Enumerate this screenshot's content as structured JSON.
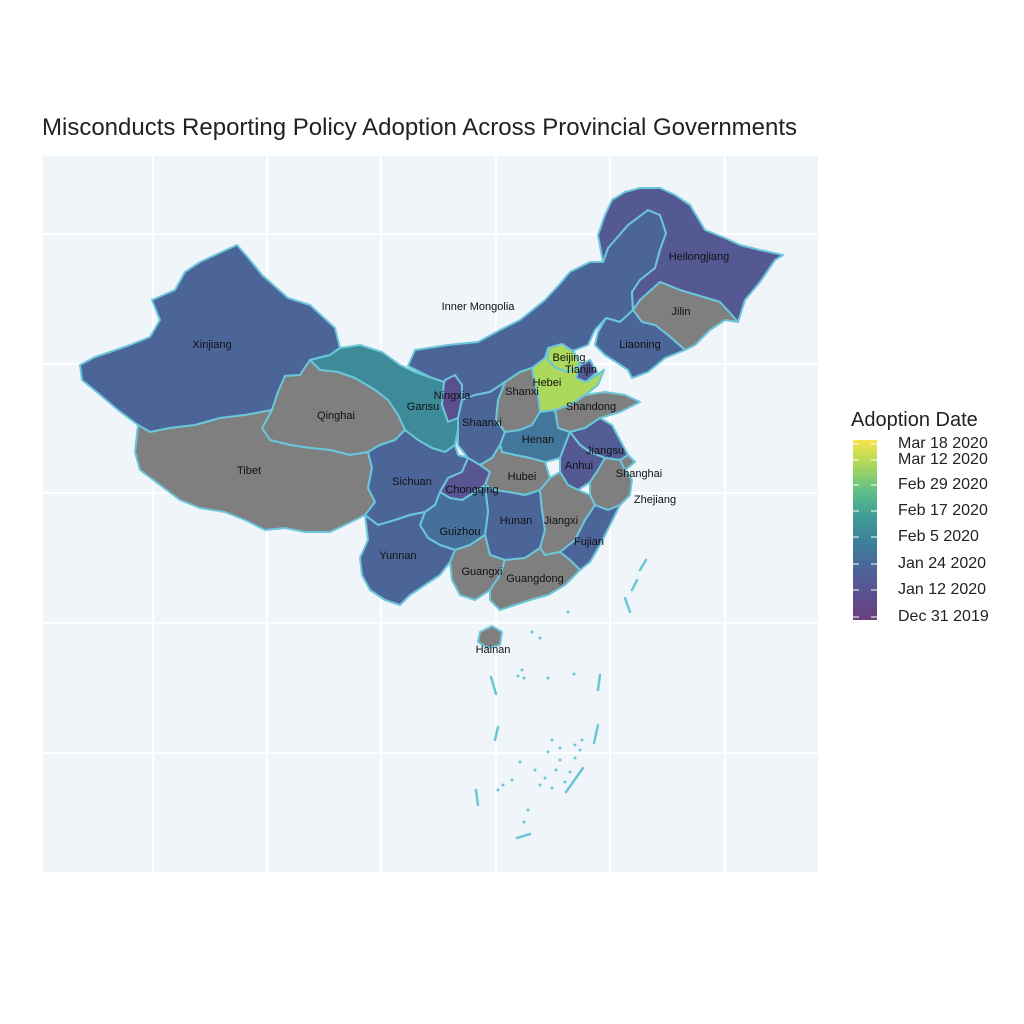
{
  "title": "Misconducts Reporting Policy Adoption Across Provincial Governments",
  "legend": {
    "title": "Adoption Date",
    "ticks": [
      "Mar 18 2020",
      "Mar 12 2020",
      "Feb 29 2020",
      "Feb 17 2020",
      "Feb 5 2020",
      "Jan 24 2020",
      "Jan 12 2020",
      "Dec 31 2019"
    ],
    "colors": [
      "#f5e44a",
      "#a8d75c",
      "#5fbf8a",
      "#3e9c96",
      "#3d7f9a",
      "#4c6599",
      "#5a5090",
      "#6a3f7e"
    ]
  },
  "colors": {
    "missing": "#7f7f7f",
    "panel": "#f0f5fa",
    "border": "#6bc6da"
  },
  "provinces": [
    {
      "name": "Inner Mongolia",
      "adoption_date": "Jan 24 2020"
    },
    {
      "name": "Heilongjiang",
      "adoption_date": "Jan 17 2020"
    },
    {
      "name": "Jilin",
      "adoption_date": null
    },
    {
      "name": "Liaoning",
      "adoption_date": "Jan 24 2020"
    },
    {
      "name": "Xinjiang",
      "adoption_date": "Jan 24 2020"
    },
    {
      "name": "Beijing",
      "adoption_date": "Mar 1 2020"
    },
    {
      "name": "Tianjin",
      "adoption_date": "Jan 17 2020"
    },
    {
      "name": "Hebei",
      "adoption_date": "Mar 1 2020"
    },
    {
      "name": "Shanxi",
      "adoption_date": null
    },
    {
      "name": "Shandong",
      "adoption_date": null
    },
    {
      "name": "Ningxia",
      "adoption_date": "Jan 12 2020"
    },
    {
      "name": "Gansu",
      "adoption_date": "Feb 10 2020"
    },
    {
      "name": "Qinghai",
      "adoption_date": null
    },
    {
      "name": "Shaanxi",
      "adoption_date": "Jan 24 2020"
    },
    {
      "name": "Henan",
      "adoption_date": "Feb 1 2020"
    },
    {
      "name": "Jiangsu",
      "adoption_date": "Jan 20 2020"
    },
    {
      "name": "Anhui",
      "adoption_date": "Jan 17 2020"
    },
    {
      "name": "Tibet",
      "adoption_date": null
    },
    {
      "name": "Sichuan",
      "adoption_date": "Jan 24 2020"
    },
    {
      "name": "Chongqing",
      "adoption_date": "Jan 15 2020"
    },
    {
      "name": "Hubei",
      "adoption_date": null
    },
    {
      "name": "Shanghai",
      "adoption_date": null
    },
    {
      "name": "Zhejiang",
      "adoption_date": null
    },
    {
      "name": "Hunan",
      "adoption_date": "Jan 24 2020"
    },
    {
      "name": "Jiangxi",
      "adoption_date": null
    },
    {
      "name": "Guizhou",
      "adoption_date": "Jan 29 2020"
    },
    {
      "name": "Yunnan",
      "adoption_date": "Jan 24 2020"
    },
    {
      "name": "Fujian",
      "adoption_date": "Jan 24 2020"
    },
    {
      "name": "Guangxi",
      "adoption_date": null
    },
    {
      "name": "Guangdong",
      "adoption_date": null
    },
    {
      "name": "Hainan",
      "adoption_date": null
    }
  ]
}
